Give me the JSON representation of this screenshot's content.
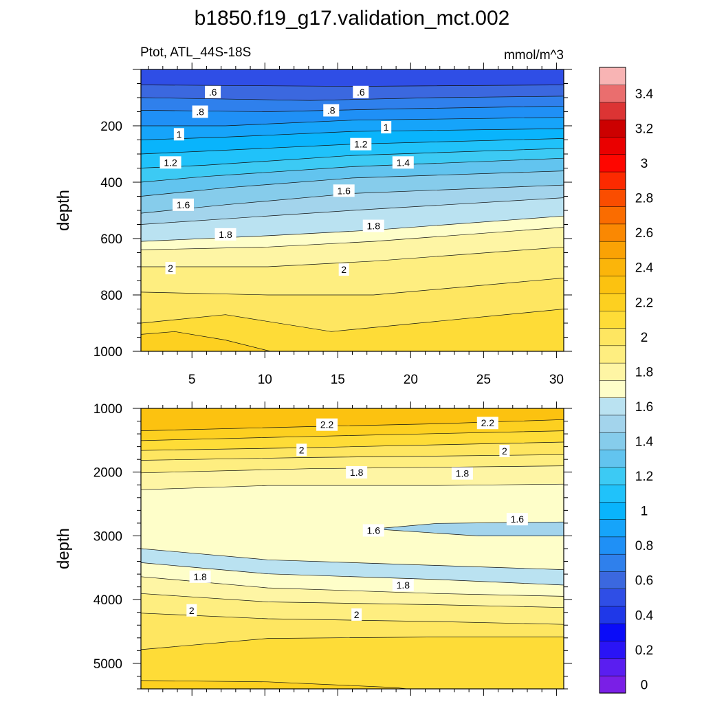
{
  "chart_data": {
    "type": "contour",
    "title": "b1850.f19_g17.validation_mct.002",
    "variable_label": "Ptot, ATL_44S-18S",
    "units_label": "mmol/m^3",
    "x_tick_labels": [
      "5",
      "10",
      "15",
      "20",
      "25",
      "30"
    ],
    "x_ticks": [
      5,
      10,
      15,
      20,
      25,
      30
    ],
    "xlim": [
      1.5,
      30.5
    ],
    "panels": [
      {
        "name": "upper",
        "ylabel": "depth",
        "ylim": [
          1000,
          0
        ],
        "y_ticks": [
          200,
          400,
          600,
          800,
          1000
        ],
        "y_tick_labels": [
          "200",
          "400",
          "600",
          "800",
          "1000"
        ],
        "contour_labels": [
          ".6",
          ".6",
          ".8",
          ".8",
          "1",
          "1",
          "1.2",
          "1.2",
          "1.4",
          "1.6",
          "1.6",
          "1.8",
          "1.8",
          "2",
          "2"
        ]
      },
      {
        "name": "lower",
        "ylabel": "depth",
        "ylim": [
          5400,
          1000
        ],
        "y_ticks": [
          1000,
          2000,
          3000,
          4000,
          5000
        ],
        "y_tick_labels": [
          "1000",
          "2000",
          "3000",
          "4000",
          "5000"
        ],
        "contour_labels": [
          "2.2",
          "2.2",
          "2",
          "2",
          "1.8",
          "1.8",
          "1.6",
          "1.6",
          "1.8",
          "1.8",
          "2",
          "2"
        ]
      }
    ],
    "colorbar": {
      "levels": [
        0,
        0.1,
        0.2,
        0.3,
        0.4,
        0.5,
        0.6,
        0.7,
        0.8,
        0.9,
        1.0,
        1.1,
        1.2,
        1.3,
        1.4,
        1.5,
        1.6,
        1.7,
        1.8,
        1.9,
        2.0,
        2.1,
        2.2,
        2.3,
        2.4,
        2.5,
        2.6,
        2.7,
        2.8,
        2.9,
        3.0,
        3.1,
        3.2,
        3.3,
        3.4,
        3.5
      ],
      "tick_labels": [
        "0",
        "0.2",
        "0.4",
        "0.6",
        "0.8",
        "1",
        "1.2",
        "1.4",
        "1.6",
        "1.8",
        "2",
        "2.2",
        "2.4",
        "2.6",
        "2.8",
        "3",
        "3.2",
        "3.4"
      ],
      "colors": [
        "#7a1fe6",
        "#5a1ef0",
        "#2a14f6",
        "#0a0cf8",
        "#1f38e8",
        "#2f4ee6",
        "#3b68df",
        "#2f80ec",
        "#1f90f6",
        "#16a4fa",
        "#09b4fc",
        "#20c2fa",
        "#3ccaf4",
        "#62c4ef",
        "#86cceb",
        "#a3d4ec",
        "#bae2f1",
        "#fefec9",
        "#fef5a4",
        "#feee80",
        "#fee661",
        "#fedc37",
        "#fdd020",
        "#fcc210",
        "#fbb50a",
        "#faa205",
        "#fa8802",
        "#fa6c00",
        "#fa4d00",
        "#fc2a00",
        "#fe0600",
        "#ea0000",
        "#cc0000",
        "#dc3434",
        "#ea6e6e",
        "#f8b4b4"
      ]
    }
  }
}
